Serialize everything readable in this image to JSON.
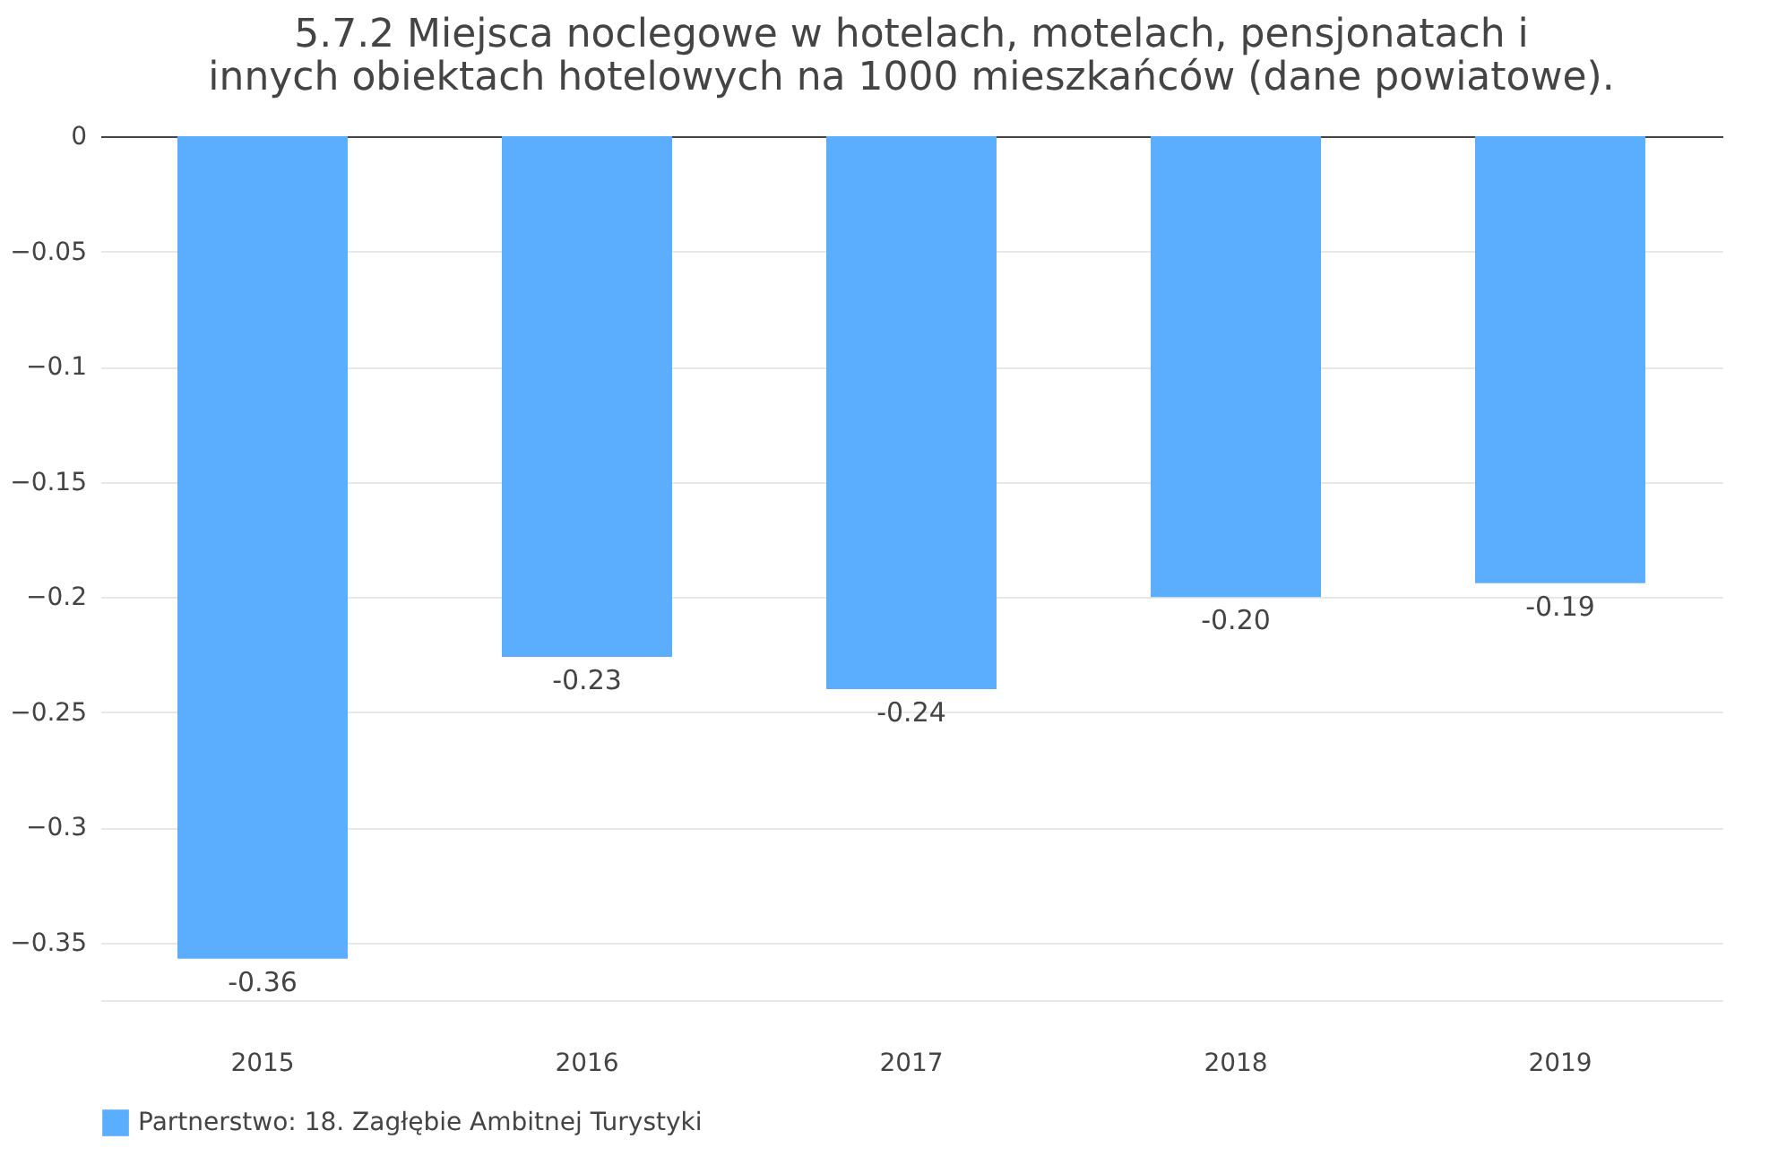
{
  "chart_data": {
    "type": "bar",
    "title": [
      "5.7.2 Miejsca noclegowe w hotelach, motelach, pensjonatach i",
      "innych obiektach hotelowych na 1000 mieszkańców (dane powiatowe)."
    ],
    "categories": [
      "2015",
      "2016",
      "2017",
      "2018",
      "2019"
    ],
    "series": [
      {
        "name": "Partnerstwo: 18. Zagłębie Ambitnej Turystyki",
        "color": "#5aaefd",
        "values": [
          -0.357,
          -0.226,
          -0.24,
          -0.2,
          -0.194
        ],
        "value_labels": [
          "-0.36",
          "-0.23",
          "-0.24",
          "-0.20",
          "-0.19"
        ]
      }
    ],
    "ylim": [
      -0.375,
      0
    ],
    "yticks": [
      0,
      -0.05,
      -0.1,
      -0.15,
      -0.2,
      -0.25,
      -0.3,
      -0.35
    ],
    "grid": "y",
    "legend": "bottom"
  }
}
